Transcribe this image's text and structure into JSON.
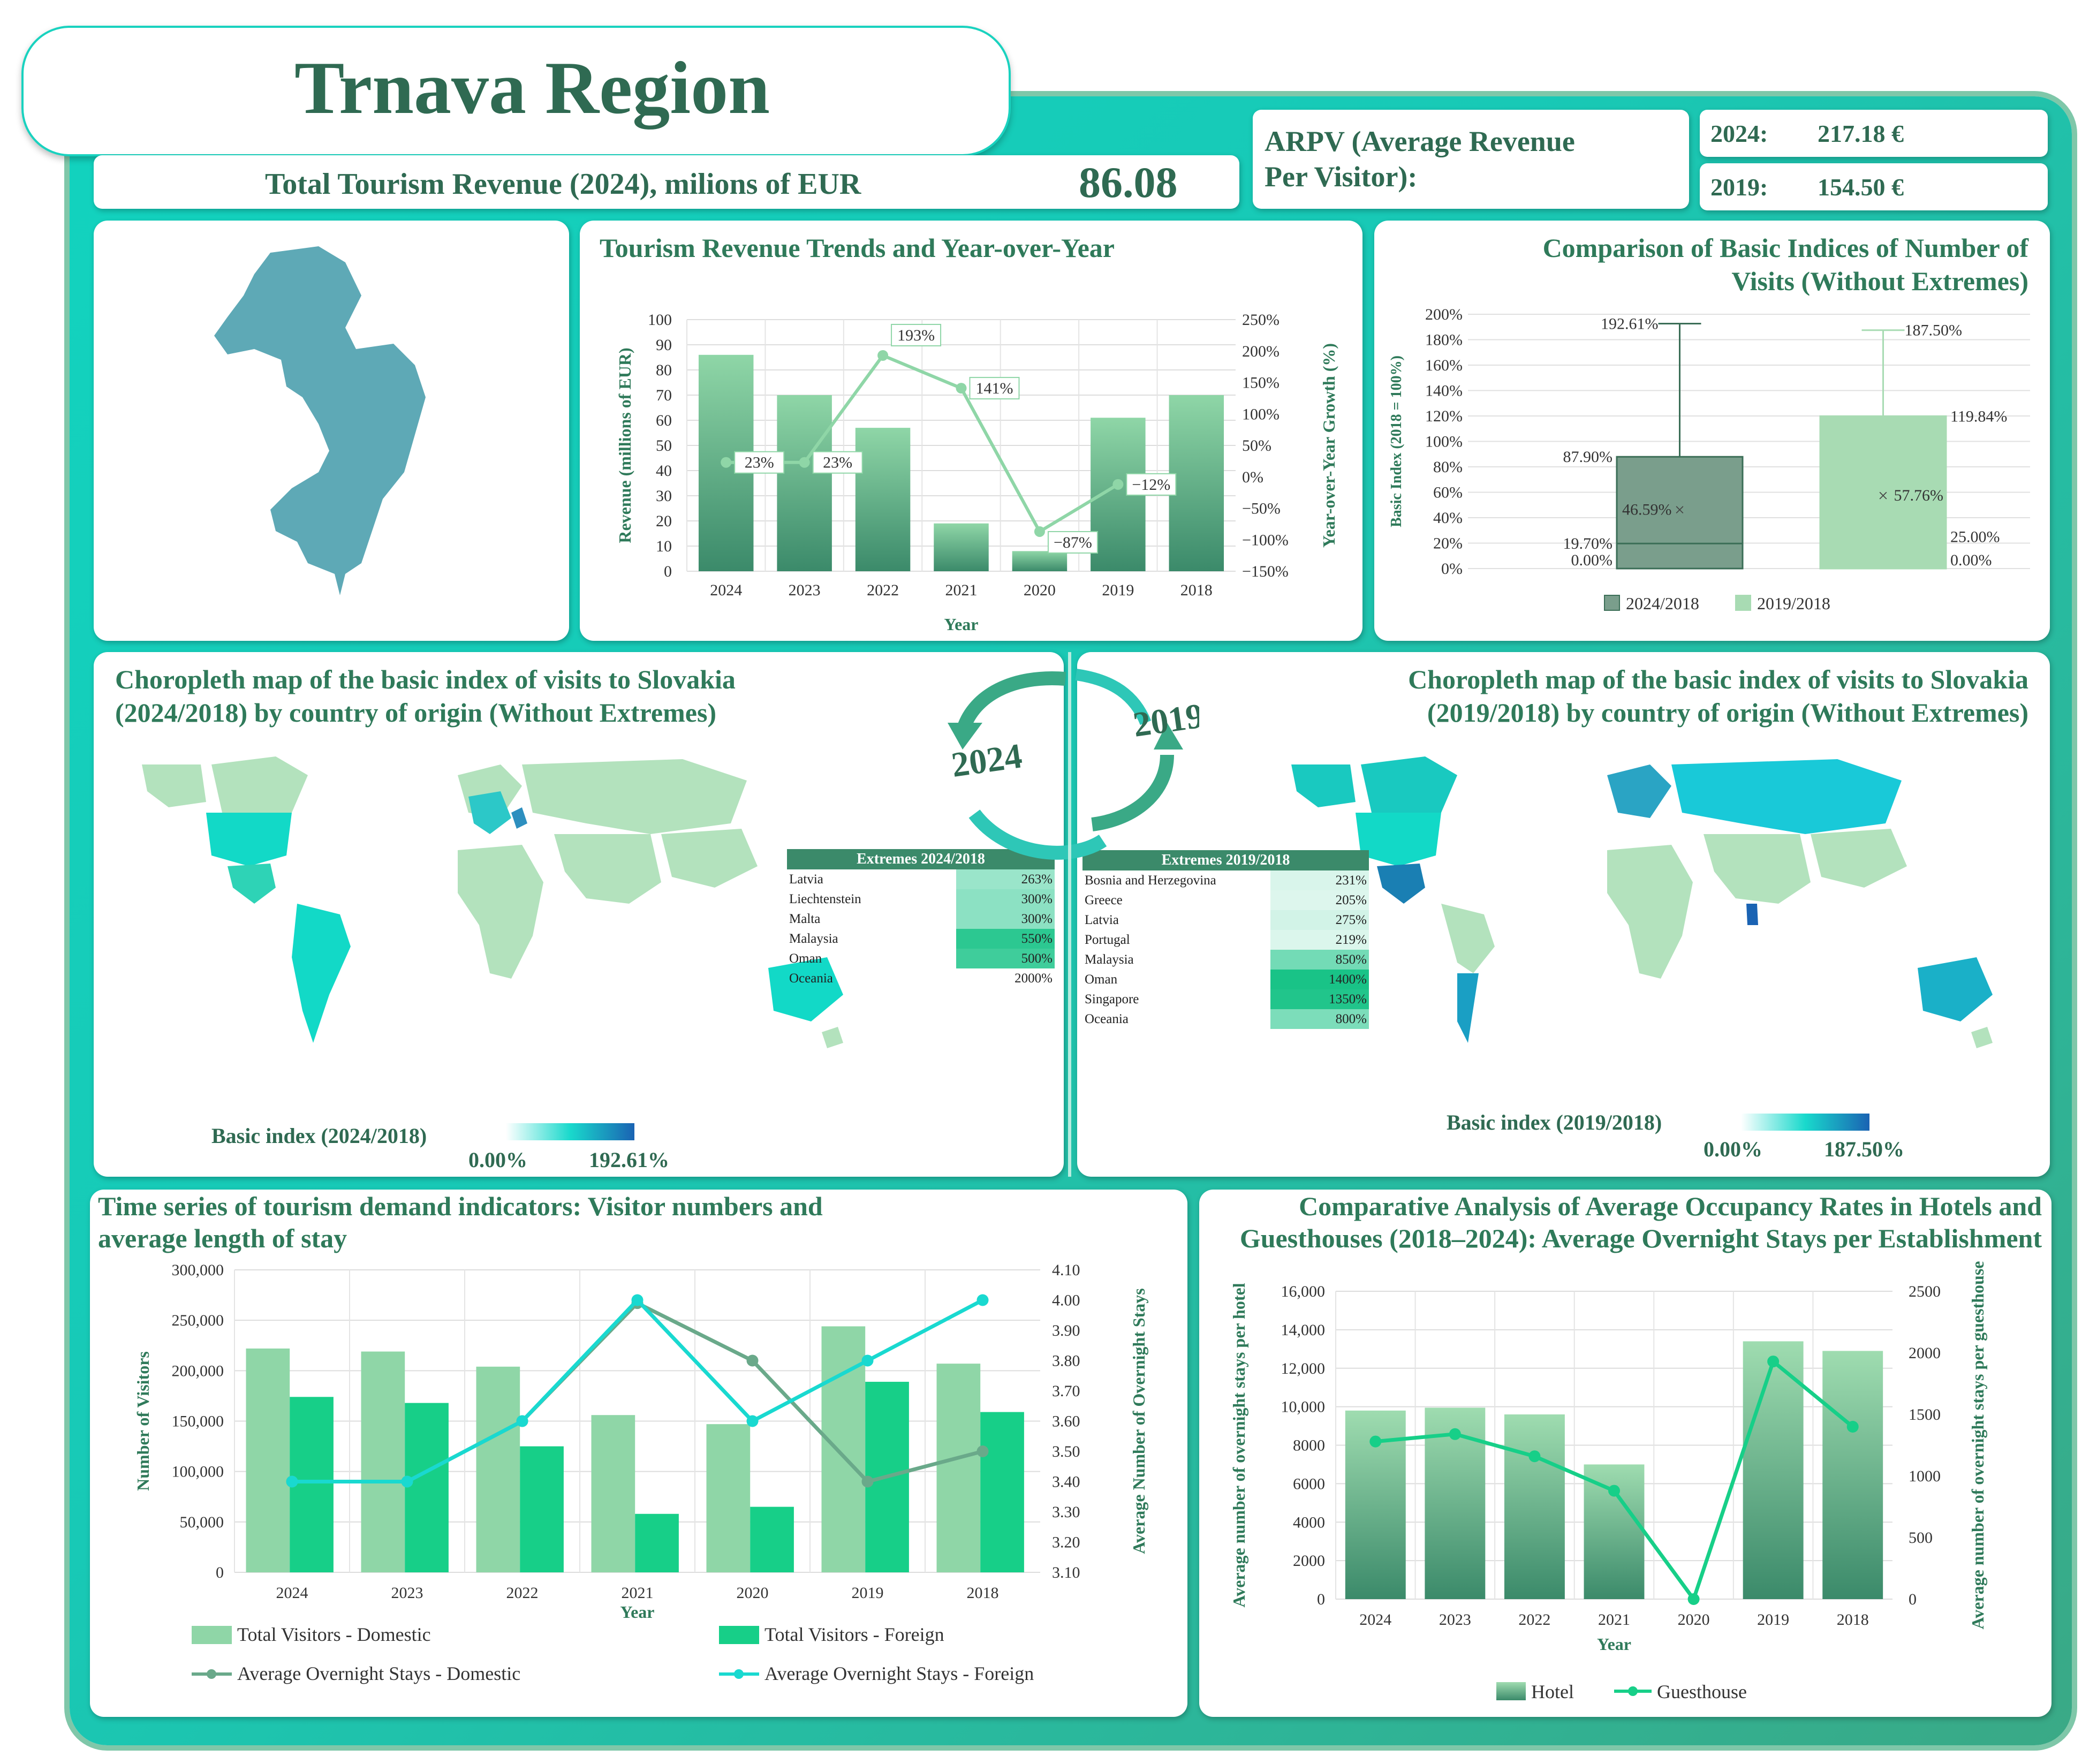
{
  "header": {
    "title": "Trnava Region",
    "revenue_label": "Total Tourism Revenue (2024), milions of EUR",
    "revenue_value": "86.08",
    "arpv_label_line1": "ARPV (Average Revenue",
    "arpv_label_line2": "Per Visitor):",
    "arpv": [
      {
        "year": "2024:",
        "value": "217.18 €"
      },
      {
        "year": "2019:",
        "value": "154.50 €"
      }
    ]
  },
  "colors": {
    "accent": "#2f7a5a",
    "teal": "#12d3bf",
    "bar_light": "#8fd6a7",
    "bar_dark": "#3b8a6a",
    "foreign": "#17cf88",
    "line_foreign": "#19d9d0",
    "region": "#5ea9b6"
  },
  "charts": [
    {
      "type": "bar+line",
      "title": "Tourism Revenue Trends and Year-over-Year",
      "xlabel": "Year",
      "ylabel": "Revenue (millions of EUR)",
      "y2label": "Year-over-Year Growth (%)",
      "categories": [
        "2024",
        "2023",
        "2022",
        "2021",
        "2020",
        "2019",
        "2018"
      ],
      "bars": [
        86,
        70,
        57,
        19,
        8,
        61,
        70
      ],
      "line": [
        23,
        23,
        193,
        141,
        -87,
        -12,
        null
      ],
      "line_labels": [
        "23%",
        "23%",
        "193%",
        "141%",
        "−87%",
        "−12%",
        ""
      ],
      "ylim": [
        0,
        100
      ],
      "y_ticks": [
        "0",
        "10",
        "20",
        "30",
        "40",
        "50",
        "60",
        "70",
        "80",
        "90",
        "100"
      ],
      "y2lim": [
        -150,
        250
      ],
      "y2_ticks": [
        "−150%",
        "−100%",
        "−50%",
        "0%",
        "50%",
        "100%",
        "150%",
        "200%",
        "250%"
      ]
    },
    {
      "type": "boxplot",
      "title_line1": "Comparison of Basic Indices of Number of",
      "title_line2": "Visits (Without Extremes)",
      "ylabel": "Basic Index (2018 = 100%)",
      "ylim": [
        0,
        200
      ],
      "y_ticks": [
        "0%",
        "20%",
        "40%",
        "60%",
        "80%",
        "100%",
        "120%",
        "140%",
        "160%",
        "180%",
        "200%"
      ],
      "series": [
        {
          "name": "2024/2018",
          "min": 0,
          "q1": 19.7,
          "mean": 46.59,
          "q3": 87.9,
          "max": 192.61,
          "labels": {
            "max": "192.61%",
            "q3": "87.90%",
            "mean": "46.59%",
            "q1": "19.70%",
            "min": "0.00%"
          }
        },
        {
          "name": "2019/2018",
          "min": 0,
          "q1": 25.0,
          "mean": 57.76,
          "q3": 119.84,
          "max": 187.5,
          "labels": {
            "max": "187.50%",
            "q3": "119.84%",
            "mean": "57.76%",
            "q1": "25.00%",
            "min": "0.00%"
          }
        }
      ]
    },
    {
      "type": "bar+line",
      "title_line1": "Time series of tourism demand indicators: Visitor numbers and",
      "title_line2": "average length of stay",
      "xlabel": "Year",
      "ylabel": "Number of Visitors",
      "y2label": "Average Number of Overnight Stays",
      "categories": [
        "2024",
        "2023",
        "2022",
        "2021",
        "2020",
        "2019",
        "2018"
      ],
      "series": [
        {
          "name": "Total Visitors - Domestic",
          "values": [
            222000,
            219000,
            204000,
            156000,
            147000,
            244000,
            207000
          ]
        },
        {
          "name": "Total Visitors - Foreign",
          "values": [
            174000,
            168000,
            125000,
            58000,
            65000,
            189000,
            159000
          ]
        }
      ],
      "lines": [
        {
          "name": "Average Overnight Stays - Domestic",
          "values": [
            3.4,
            3.4,
            3.6,
            3.99,
            3.8,
            3.4,
            3.5
          ]
        },
        {
          "name": "Average Overnight Stays - Foreign",
          "values": [
            3.4,
            3.4,
            3.6,
            4.0,
            3.6,
            3.8,
            4.0
          ]
        }
      ],
      "ylim": [
        0,
        300000
      ],
      "y_ticks": [
        "0",
        "50,000",
        "100,000",
        "150,000",
        "200,000",
        "250,000",
        "300,000"
      ],
      "y2lim": [
        3.1,
        4.1
      ],
      "y2_ticks": [
        "3.10",
        "3.20",
        "3.30",
        "3.40",
        "3.50",
        "3.60",
        "3.70",
        "3.80",
        "3.90",
        "4.00",
        "4.10"
      ]
    },
    {
      "type": "bar+line",
      "title_line1": "Comparative Analysis of Average Occupancy Rates in Hotels and",
      "title_line2": "Guesthouses (2018–2024): Average Overnight Stays per Establishment",
      "xlabel": "Year",
      "ylabel": "Average number of overnight stays per hotel",
      "y2label": "Average number of overnight stays per guesthouse",
      "categories": [
        "2024",
        "2023",
        "2022",
        "2021",
        "2020",
        "2019",
        "2018"
      ],
      "series": [
        {
          "name": "Hotel",
          "values": [
            9800,
            9950,
            9600,
            7000,
            0,
            13400,
            12900
          ]
        }
      ],
      "lines": [
        {
          "name": "Guesthouse",
          "values": [
            1280,
            1340,
            1160,
            880,
            0,
            1930,
            1400
          ]
        }
      ],
      "ylim": [
        0,
        16000
      ],
      "y_ticks": [
        "0",
        "2000",
        "4000",
        "6000",
        "8000",
        "10,000",
        "12,000",
        "14,000",
        "16,000"
      ],
      "y2lim": [
        0,
        2500
      ],
      "y2_ticks": [
        "0",
        "500",
        "1000",
        "1500",
        "2000",
        "2500"
      ]
    }
  ],
  "maps": [
    {
      "title_line1": "Choropleth map of the basic index of visits to Slovakia",
      "title_line2": "(2024/2018) by country of origin (Without Extremes)",
      "legend_label": "Basic index (2024/2018)",
      "legend_min": "0.00%",
      "legend_max": "192.61%",
      "extremes_title": "Extremes 2024/2018",
      "extremes": [
        {
          "country": "Latvia",
          "value": "263%"
        },
        {
          "country": "Liechtenstein",
          "value": "300%"
        },
        {
          "country": "Malta",
          "value": "300%"
        },
        {
          "country": "Malaysia",
          "value": "550%"
        },
        {
          "country": "Oman",
          "value": "500%"
        },
        {
          "country": "Oceania",
          "value": "2000%"
        }
      ]
    },
    {
      "title_line1": "Choropleth map of the basic index of visits to Slovakia",
      "title_line2": "(2019/2018) by country of origin (Without Extremes)",
      "legend_label": "Basic index (2019/2018)",
      "legend_min": "0.00%",
      "legend_max": "187.50%",
      "extremes_title": "Extremes 2019/2018",
      "extremes": [
        {
          "country": "Bosnia and Herzegovina",
          "value": "231%"
        },
        {
          "country": "Greece",
          "value": "205%"
        },
        {
          "country": "Latvia",
          "value": "275%"
        },
        {
          "country": "Portugal",
          "value": "219%"
        },
        {
          "country": "Malaysia",
          "value": "850%"
        },
        {
          "country": "Oman",
          "value": "1400%"
        },
        {
          "country": "Singapore",
          "value": "1350%"
        },
        {
          "country": "Oceania",
          "value": "800%"
        }
      ]
    }
  ],
  "cycle": {
    "year_left": "2024",
    "year_right": "2019"
  }
}
